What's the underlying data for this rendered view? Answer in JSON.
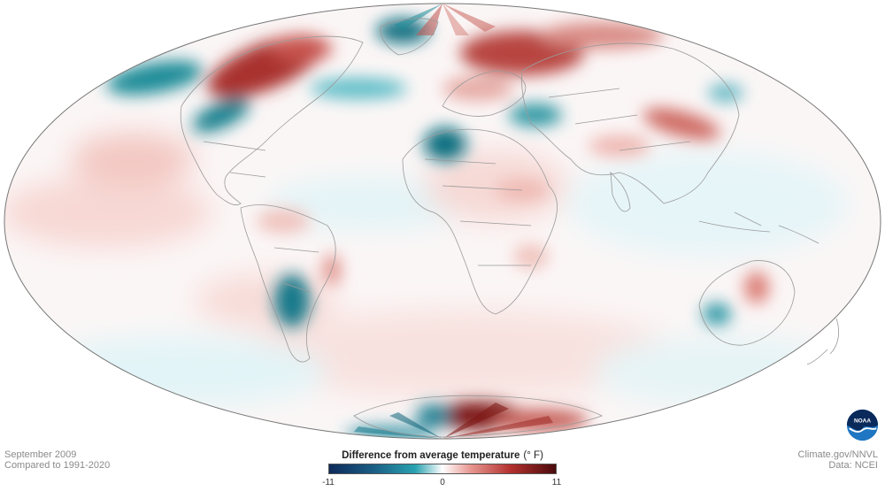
{
  "map": {
    "projection": "Mollweide (Robinson-like) global",
    "variable": "surface temperature anomaly",
    "colors": {
      "cold_extreme": "#0d2a5a",
      "cold": "#12808f",
      "cool": "#b8e6ee",
      "neutral": "#ffffff",
      "warm": "#f3c0bb",
      "hot": "#b2302f",
      "hot_extreme": "#4a0b0b",
      "border": "#9a9a9a",
      "outline": "#777777"
    },
    "notable_regions": [
      {
        "name": "Northwest North America / Alaska",
        "anomaly": "warm"
      },
      {
        "name": "Siberia / Arctic Russia",
        "anomaly": "warm"
      },
      {
        "name": "Northwest Africa",
        "anomaly": "cold"
      },
      {
        "name": "Eastern South America",
        "anomaly": "cold"
      },
      {
        "name": "Western Australia",
        "anomaly": "cold"
      },
      {
        "name": "East Antarctica",
        "anomaly": "warm"
      }
    ]
  },
  "caption_left": {
    "line1": "September 2009",
    "line2": "Compared to 1991-2020"
  },
  "caption_right": {
    "line1": "Climate.gov/NNVL",
    "line2": "Data: NCEI"
  },
  "legend": {
    "title": "Difference from average temperature",
    "unit": "(° F)",
    "min_label": "-11",
    "mid_label": "0",
    "max_label": "11",
    "min": -11,
    "max": 11
  },
  "logo": {
    "text": "NOAA",
    "icon": "noaa-logo-icon"
  }
}
